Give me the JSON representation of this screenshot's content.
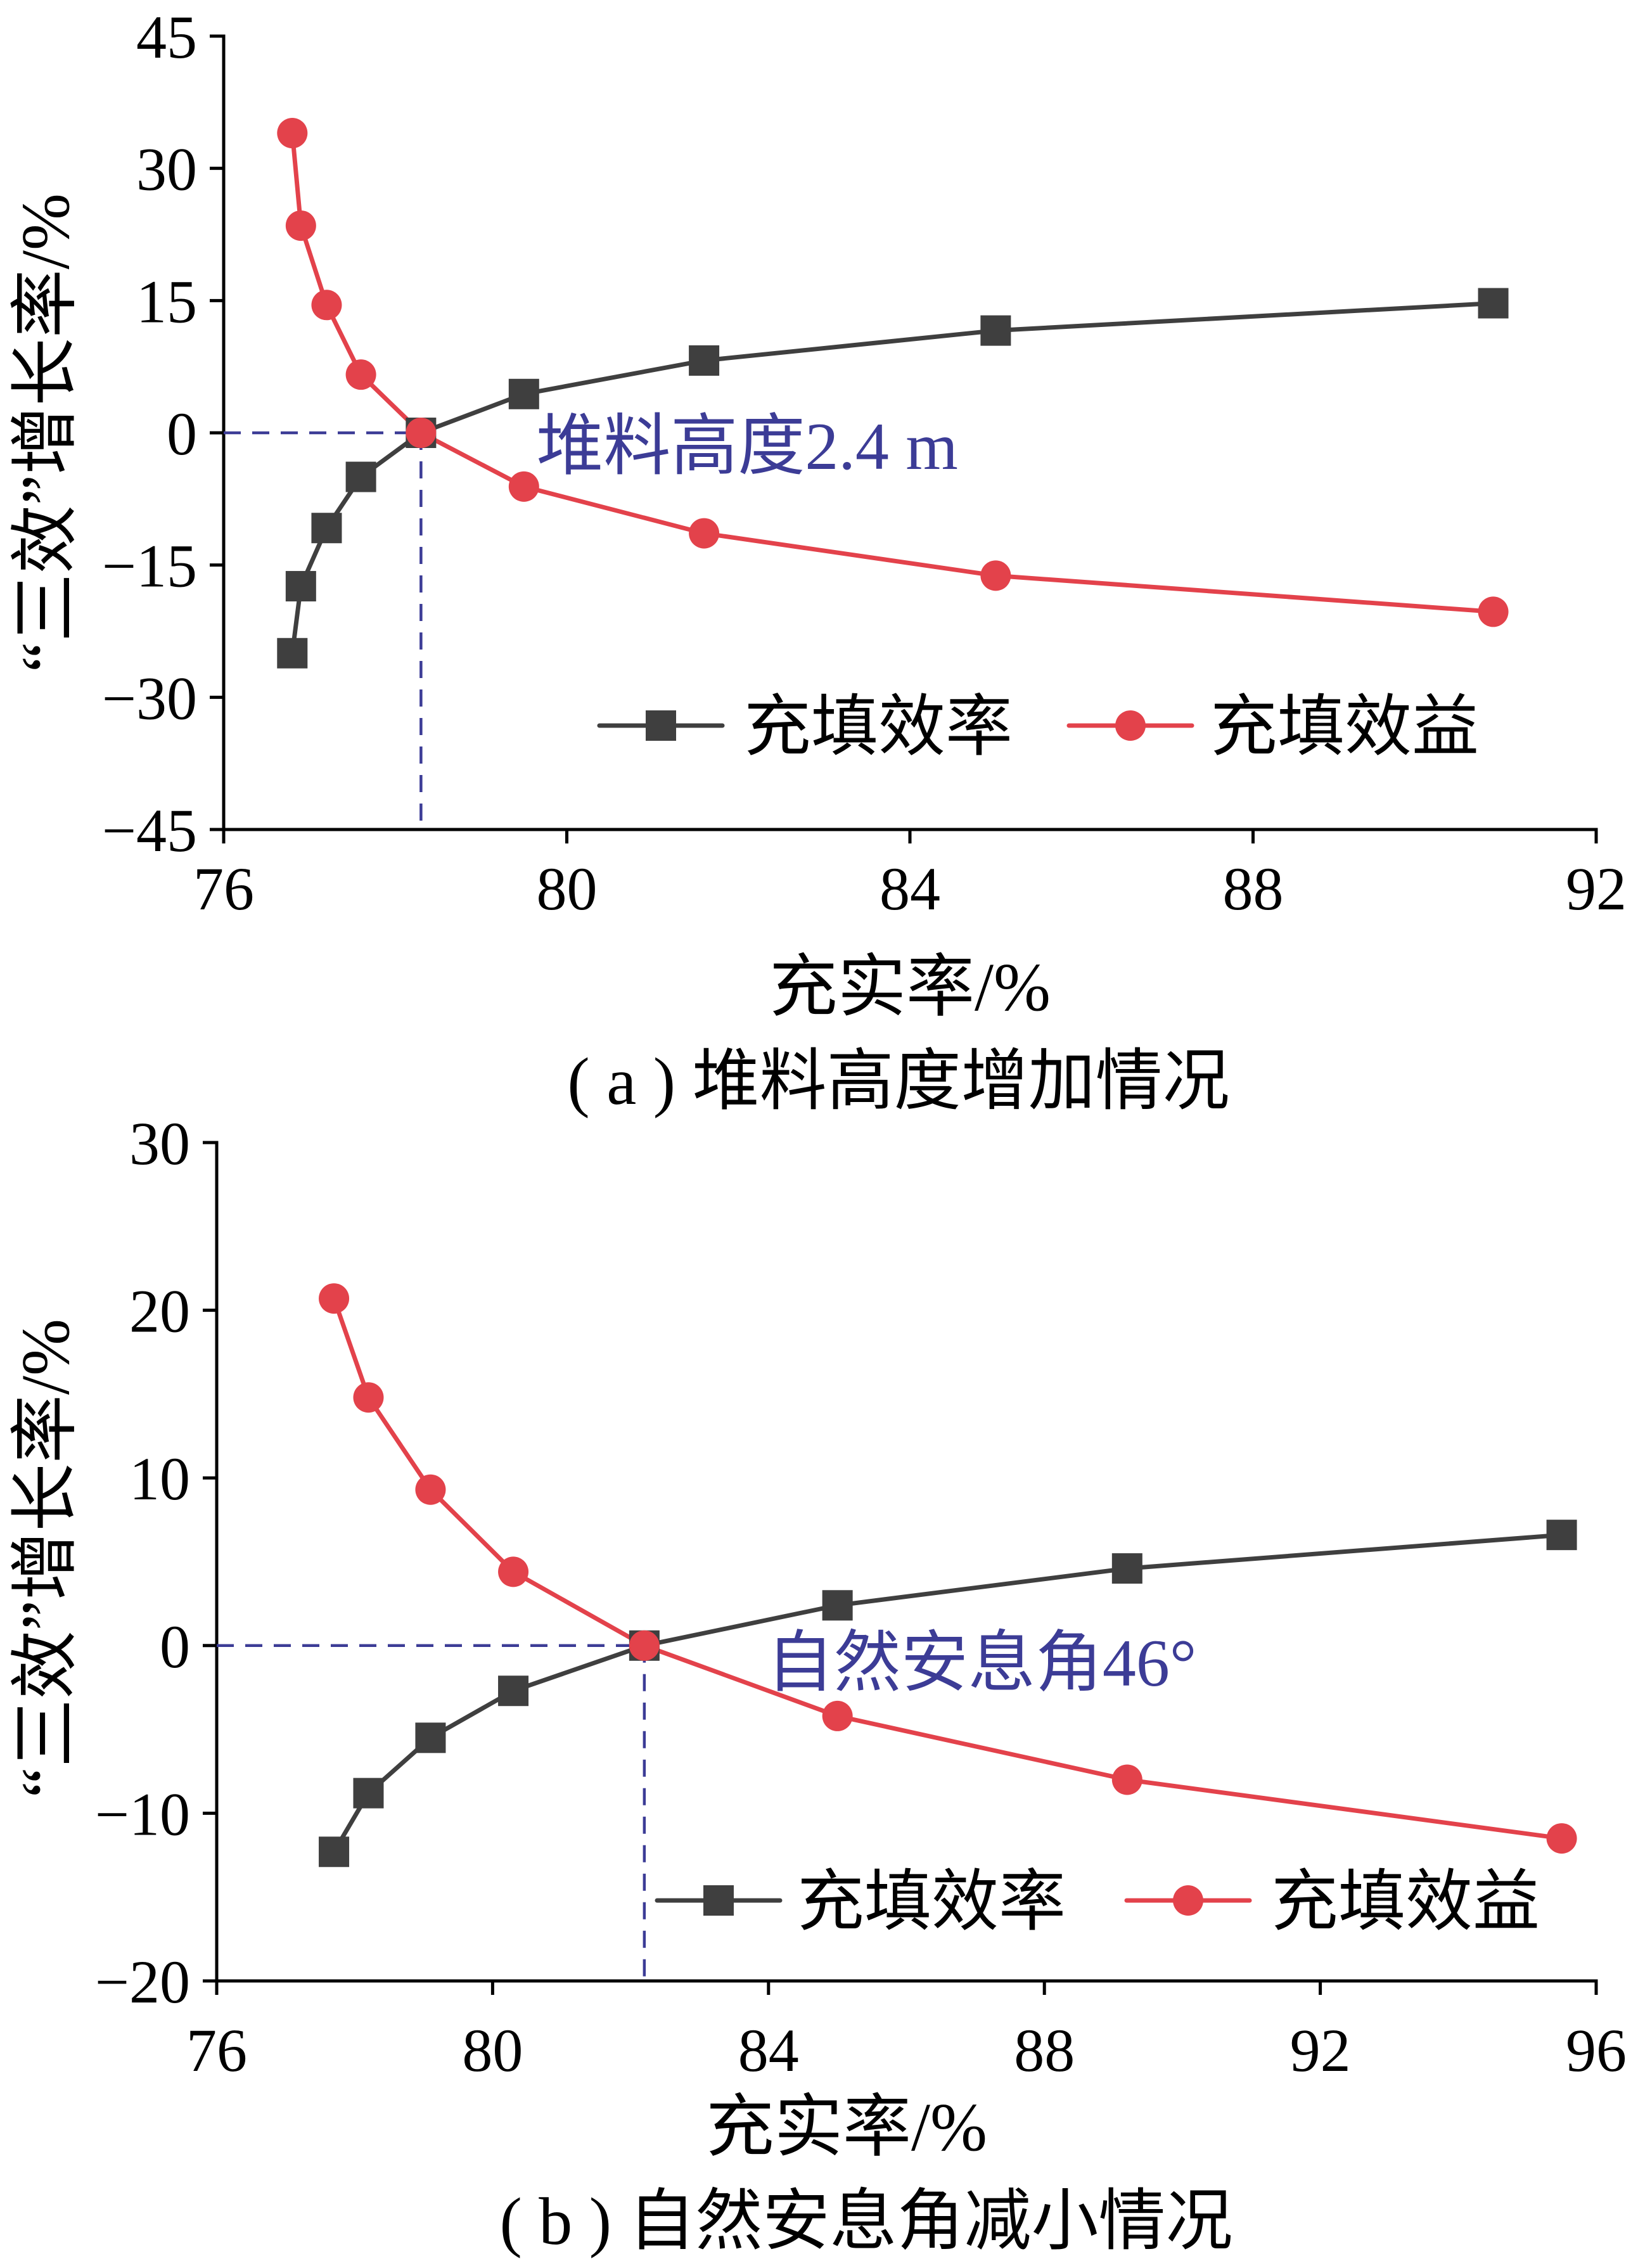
{
  "chart_data": [
    {
      "type": "line",
      "caption": "( a ) 堆料高度增加情况",
      "xlabel": "充实率/%",
      "ylabel": "“三效”增长率/%",
      "xlim": [
        76,
        92
      ],
      "ylim": [
        -45,
        45
      ],
      "xticks": [
        76,
        80,
        84,
        88,
        92
      ],
      "yticks": [
        45,
        30,
        15,
        0,
        -15,
        -30,
        -45
      ],
      "grid": false,
      "legend": "bottom-right",
      "guide_color": "#3c3c96",
      "annotation": {
        "text": "堆料高度2.4 m",
        "x": 78.3,
        "y": 0,
        "color": "#3c3c96"
      },
      "series": [
        {
          "name": "充填效率",
          "marker": "square",
          "color": "#3f3f3f",
          "x": [
            76.8,
            76.9,
            77.2,
            77.6,
            78.3,
            79.5,
            81.6,
            85.0,
            90.8
          ],
          "y": [
            -25.0,
            -17.4,
            -10.8,
            -5.0,
            0,
            4.4,
            8.2,
            11.6,
            14.7
          ]
        },
        {
          "name": "充填效益",
          "marker": "circle",
          "color": "#e3424b",
          "x": [
            76.8,
            76.9,
            77.2,
            77.6,
            78.3,
            79.5,
            81.6,
            85.0,
            90.8
          ],
          "y": [
            34.0,
            23.5,
            14.5,
            6.6,
            0,
            -6.1,
            -11.4,
            -16.2,
            -20.3
          ]
        }
      ]
    },
    {
      "type": "line",
      "caption": "( b ) 自然安息角减小情况",
      "xlabel": "充实率/%",
      "ylabel": "“三效”增长率/%",
      "xlim": [
        76,
        96
      ],
      "ylim": [
        -20,
        30
      ],
      "xticks": [
        76,
        80,
        84,
        88,
        92,
        96
      ],
      "yticks": [
        30,
        20,
        10,
        0,
        -10,
        -20
      ],
      "grid": false,
      "legend": "bottom-right",
      "guide_color": "#3c3c96",
      "annotation": {
        "text": "自然安息角46°",
        "x": 82.2,
        "y": 0,
        "color": "#3c3c96"
      },
      "series": [
        {
          "name": "充填效率",
          "marker": "square",
          "color": "#3f3f3f",
          "x": [
            77.7,
            78.2,
            79.1,
            80.3,
            82.2,
            85.0,
            89.2,
            95.5
          ],
          "y": [
            -12.3,
            -8.8,
            -5.5,
            -2.7,
            0,
            2.4,
            4.6,
            6.6
          ]
        },
        {
          "name": "充填效益",
          "marker": "circle",
          "color": "#e3424b",
          "x": [
            77.7,
            78.2,
            79.1,
            80.3,
            82.2,
            85.0,
            89.2,
            95.5
          ],
          "y": [
            20.7,
            14.8,
            9.3,
            4.4,
            0,
            -4.2,
            -8.0,
            -11.5
          ]
        }
      ]
    }
  ]
}
